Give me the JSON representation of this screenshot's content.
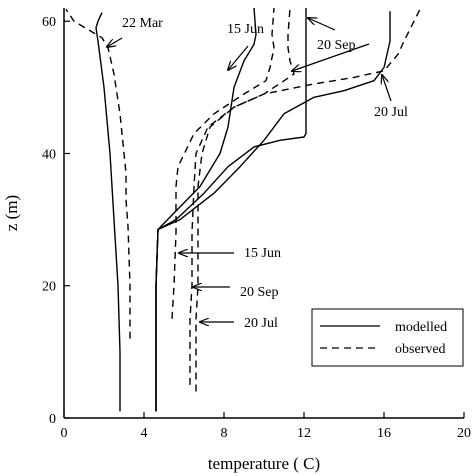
{
  "chart_data": {
    "type": "line",
    "xlabel": "temperature ( C)",
    "ylabel": "z (m)",
    "xlim": [
      0,
      20
    ],
    "ylim": [
      0,
      62
    ],
    "xticks": [
      "0",
      "4",
      "8",
      "12",
      "16",
      "20"
    ],
    "yticks": [
      "0",
      "20",
      "40",
      "60"
    ],
    "legend": {
      "position": "bottom-right",
      "entries": [
        {
          "label": "modelled",
          "style": "solid"
        },
        {
          "label": "observed",
          "style": "dashed"
        }
      ]
    },
    "series": [
      {
        "name": "modelled",
        "date": "22 Mar",
        "style": "solid",
        "points": [
          [
            2.8,
            1
          ],
          [
            2.8,
            10
          ],
          [
            2.7,
            20
          ],
          [
            2.5,
            30
          ],
          [
            2.3,
            40
          ],
          [
            2.0,
            50
          ],
          [
            1.7,
            57
          ],
          [
            1.6,
            59
          ],
          [
            1.7,
            60
          ],
          [
            1.9,
            61.3
          ]
        ]
      },
      {
        "name": "observed",
        "date": "22 Mar",
        "style": "dashed",
        "points": [
          [
            3.3,
            12
          ],
          [
            3.3,
            20
          ],
          [
            3.2,
            29
          ],
          [
            3.1,
            33
          ],
          [
            3.1,
            37
          ],
          [
            3.0,
            40
          ],
          [
            2.8,
            46
          ],
          [
            2.5,
            52
          ],
          [
            2.2,
            56
          ],
          [
            1.9,
            57.5
          ],
          [
            0.5,
            60
          ],
          [
            0.1,
            61.8
          ]
        ]
      },
      {
        "name": "modelled",
        "date": "15 Jun",
        "style": "solid",
        "points": [
          [
            4.6,
            1
          ],
          [
            4.6,
            20
          ],
          [
            4.7,
            28.5
          ],
          [
            5.5,
            31
          ],
          [
            6.8,
            35
          ],
          [
            7.8,
            40
          ],
          [
            8.2,
            44
          ],
          [
            8.5,
            50
          ],
          [
            9.0,
            54
          ],
          [
            9.5,
            56.5
          ],
          [
            9.6,
            58
          ],
          [
            9.5,
            62
          ]
        ]
      },
      {
        "name": "observed",
        "date": "15 Jun",
        "style": "dashed",
        "points": [
          [
            5.4,
            15
          ],
          [
            5.5,
            20
          ],
          [
            5.6,
            28
          ],
          [
            5.6,
            35
          ],
          [
            5.7,
            38
          ],
          [
            6.5,
            43
          ],
          [
            7.5,
            46
          ],
          [
            9.0,
            49
          ],
          [
            10.1,
            51
          ],
          [
            10.3,
            53
          ],
          [
            10.5,
            56
          ],
          [
            10.4,
            58
          ],
          [
            10.5,
            62
          ]
        ]
      },
      {
        "name": "modelled",
        "date": "20 Jul",
        "style": "solid",
        "points": [
          [
            4.6,
            1
          ],
          [
            4.6,
            20
          ],
          [
            4.7,
            28.5
          ],
          [
            5.8,
            30
          ],
          [
            7.5,
            34
          ],
          [
            8.8,
            38
          ],
          [
            10.0,
            42
          ],
          [
            11.0,
            46
          ],
          [
            12.5,
            48.5
          ],
          [
            14.0,
            49.5
          ],
          [
            15.5,
            51
          ],
          [
            16.0,
            53
          ],
          [
            16.3,
            57
          ],
          [
            16.3,
            61.5
          ]
        ]
      },
      {
        "name": "observed",
        "date": "20 Jul",
        "style": "dashed",
        "points": [
          [
            6.6,
            4
          ],
          [
            6.6,
            15
          ],
          [
            6.7,
            20
          ],
          [
            6.7,
            28
          ],
          [
            6.7,
            35
          ],
          [
            6.9,
            40
          ],
          [
            7.3,
            44
          ],
          [
            8.5,
            47
          ],
          [
            10.0,
            49
          ],
          [
            12.5,
            50.5
          ],
          [
            14.5,
            51.5
          ],
          [
            16.0,
            52.5
          ],
          [
            16.7,
            55
          ],
          [
            17.0,
            57
          ],
          [
            17.5,
            60
          ],
          [
            17.8,
            61.8
          ]
        ]
      },
      {
        "name": "modelled",
        "date": "20 Sep",
        "style": "solid",
        "points": [
          [
            4.6,
            1
          ],
          [
            4.6,
            20
          ],
          [
            4.7,
            28.5
          ],
          [
            5.6,
            30
          ],
          [
            7.0,
            34
          ],
          [
            8.2,
            38
          ],
          [
            9.5,
            41
          ],
          [
            10.8,
            42
          ],
          [
            12.0,
            42.5
          ],
          [
            12.1,
            43
          ],
          [
            12.1,
            50
          ],
          [
            12.1,
            62
          ]
        ]
      },
      {
        "name": "observed",
        "date": "20 Sep",
        "style": "dashed",
        "points": [
          [
            6.3,
            5
          ],
          [
            6.3,
            15
          ],
          [
            6.4,
            20
          ],
          [
            6.4,
            28
          ],
          [
            6.5,
            35
          ],
          [
            6.6,
            40
          ],
          [
            7.2,
            44
          ],
          [
            8.5,
            47
          ],
          [
            10.0,
            49
          ],
          [
            11.5,
            52
          ],
          [
            11.3,
            54
          ],
          [
            11.2,
            56
          ],
          [
            11.2,
            58
          ],
          [
            11.3,
            62
          ]
        ]
      }
    ],
    "annotations": [
      {
        "text": "22 Mar",
        "x": 2.9,
        "y": 59.5
      },
      {
        "text": "15 Jun",
        "x": 8.0,
        "y": 58
      },
      {
        "text": "20 Sep",
        "x": 12.2,
        "y": 55
      },
      {
        "text": "20 Jul",
        "x": 15.9,
        "y": 46
      },
      {
        "text": "15 Jun",
        "x": 8.6,
        "y": 25
      },
      {
        "text": "20 Sep",
        "x": 8.3,
        "y": 18.8
      },
      {
        "text": "20 Jul",
        "x": 8.6,
        "y": 14.5
      }
    ]
  }
}
